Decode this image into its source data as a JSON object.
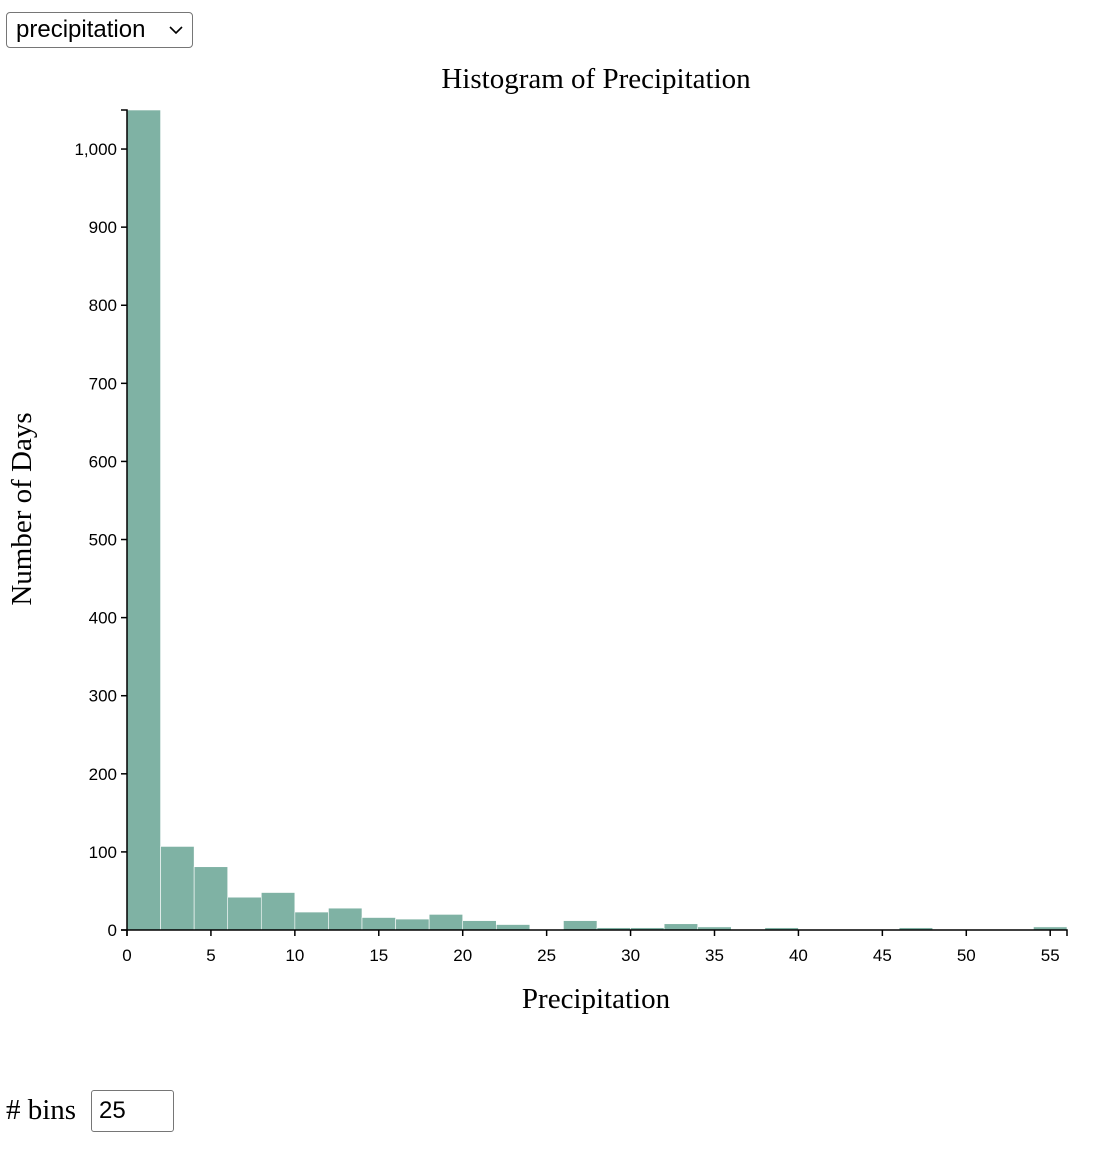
{
  "controls": {
    "metric_select_value": "precipitation",
    "bins_label": "# bins",
    "bins_value": "25"
  },
  "colors": {
    "bar_fill": "#7fb2a4",
    "bar_stroke": "#ffffff",
    "axis": "#000000"
  },
  "chart_data": {
    "type": "bar",
    "title": "Histogram of Precipitation",
    "xlabel": "Precipitation",
    "ylabel": "Number of Days",
    "xlim": [
      0,
      56
    ],
    "ylim": [
      0,
      1050
    ],
    "x_ticks": [
      0,
      5,
      10,
      15,
      20,
      25,
      30,
      35,
      40,
      45,
      50,
      55
    ],
    "y_ticks": [
      0,
      100,
      200,
      300,
      400,
      500,
      600,
      700,
      800,
      900,
      1000
    ],
    "y_tick_labels": [
      "0",
      "100",
      "200",
      "300",
      "400",
      "500",
      "600",
      "700",
      "800",
      "900",
      "1,000"
    ],
    "bin_width": 2,
    "bins": [
      {
        "x0": 0,
        "x1": 2,
        "count": 1050
      },
      {
        "x0": 2,
        "x1": 4,
        "count": 107
      },
      {
        "x0": 4,
        "x1": 6,
        "count": 81
      },
      {
        "x0": 6,
        "x1": 8,
        "count": 42
      },
      {
        "x0": 8,
        "x1": 10,
        "count": 48
      },
      {
        "x0": 10,
        "x1": 12,
        "count": 23
      },
      {
        "x0": 12,
        "x1": 14,
        "count": 28
      },
      {
        "x0": 14,
        "x1": 16,
        "count": 16
      },
      {
        "x0": 16,
        "x1": 18,
        "count": 14
      },
      {
        "x0": 18,
        "x1": 20,
        "count": 20
      },
      {
        "x0": 20,
        "x1": 22,
        "count": 12
      },
      {
        "x0": 22,
        "x1": 24,
        "count": 7
      },
      {
        "x0": 24,
        "x1": 26,
        "count": 0
      },
      {
        "x0": 26,
        "x1": 28,
        "count": 12
      },
      {
        "x0": 28,
        "x1": 30,
        "count": 3
      },
      {
        "x0": 30,
        "x1": 32,
        "count": 3
      },
      {
        "x0": 32,
        "x1": 34,
        "count": 8
      },
      {
        "x0": 34,
        "x1": 36,
        "count": 4
      },
      {
        "x0": 36,
        "x1": 38,
        "count": 0
      },
      {
        "x0": 38,
        "x1": 40,
        "count": 3
      },
      {
        "x0": 40,
        "x1": 42,
        "count": 0
      },
      {
        "x0": 42,
        "x1": 44,
        "count": 1
      },
      {
        "x0": 44,
        "x1": 46,
        "count": 0
      },
      {
        "x0": 46,
        "x1": 48,
        "count": 3
      },
      {
        "x0": 48,
        "x1": 50,
        "count": 0
      },
      {
        "x0": 50,
        "x1": 52,
        "count": 0
      },
      {
        "x0": 52,
        "x1": 54,
        "count": 0
      },
      {
        "x0": 54,
        "x1": 56,
        "count": 4
      }
    ]
  }
}
